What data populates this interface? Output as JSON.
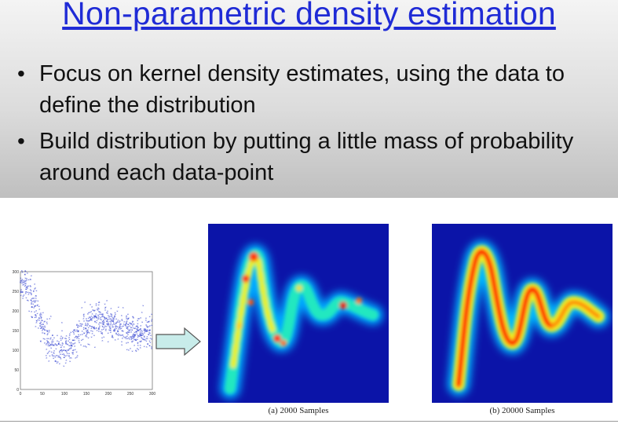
{
  "slide": {
    "title": "Non-parametric density estimation",
    "bullets": [
      "Focus on kernel density estimates, using the data to define the distribution",
      "Build distribution by putting a little mass of probability around each data-point"
    ],
    "bullet_glyph": "•"
  },
  "figure": {
    "scatter": {
      "x_ticks": [
        "0",
        "50",
        "100",
        "150",
        "200",
        "250",
        "300"
      ],
      "y_ticks": [
        "0",
        "50",
        "100",
        "150",
        "200",
        "250",
        "300"
      ],
      "point_color": "#2233cc"
    },
    "arrow_color": "#bfe3e3",
    "captions": [
      "(a) 2000 Samples",
      "(b) 20000 Samples"
    ],
    "colors": {
      "background": "#0b14a8",
      "title": "#1f2bd6"
    }
  }
}
